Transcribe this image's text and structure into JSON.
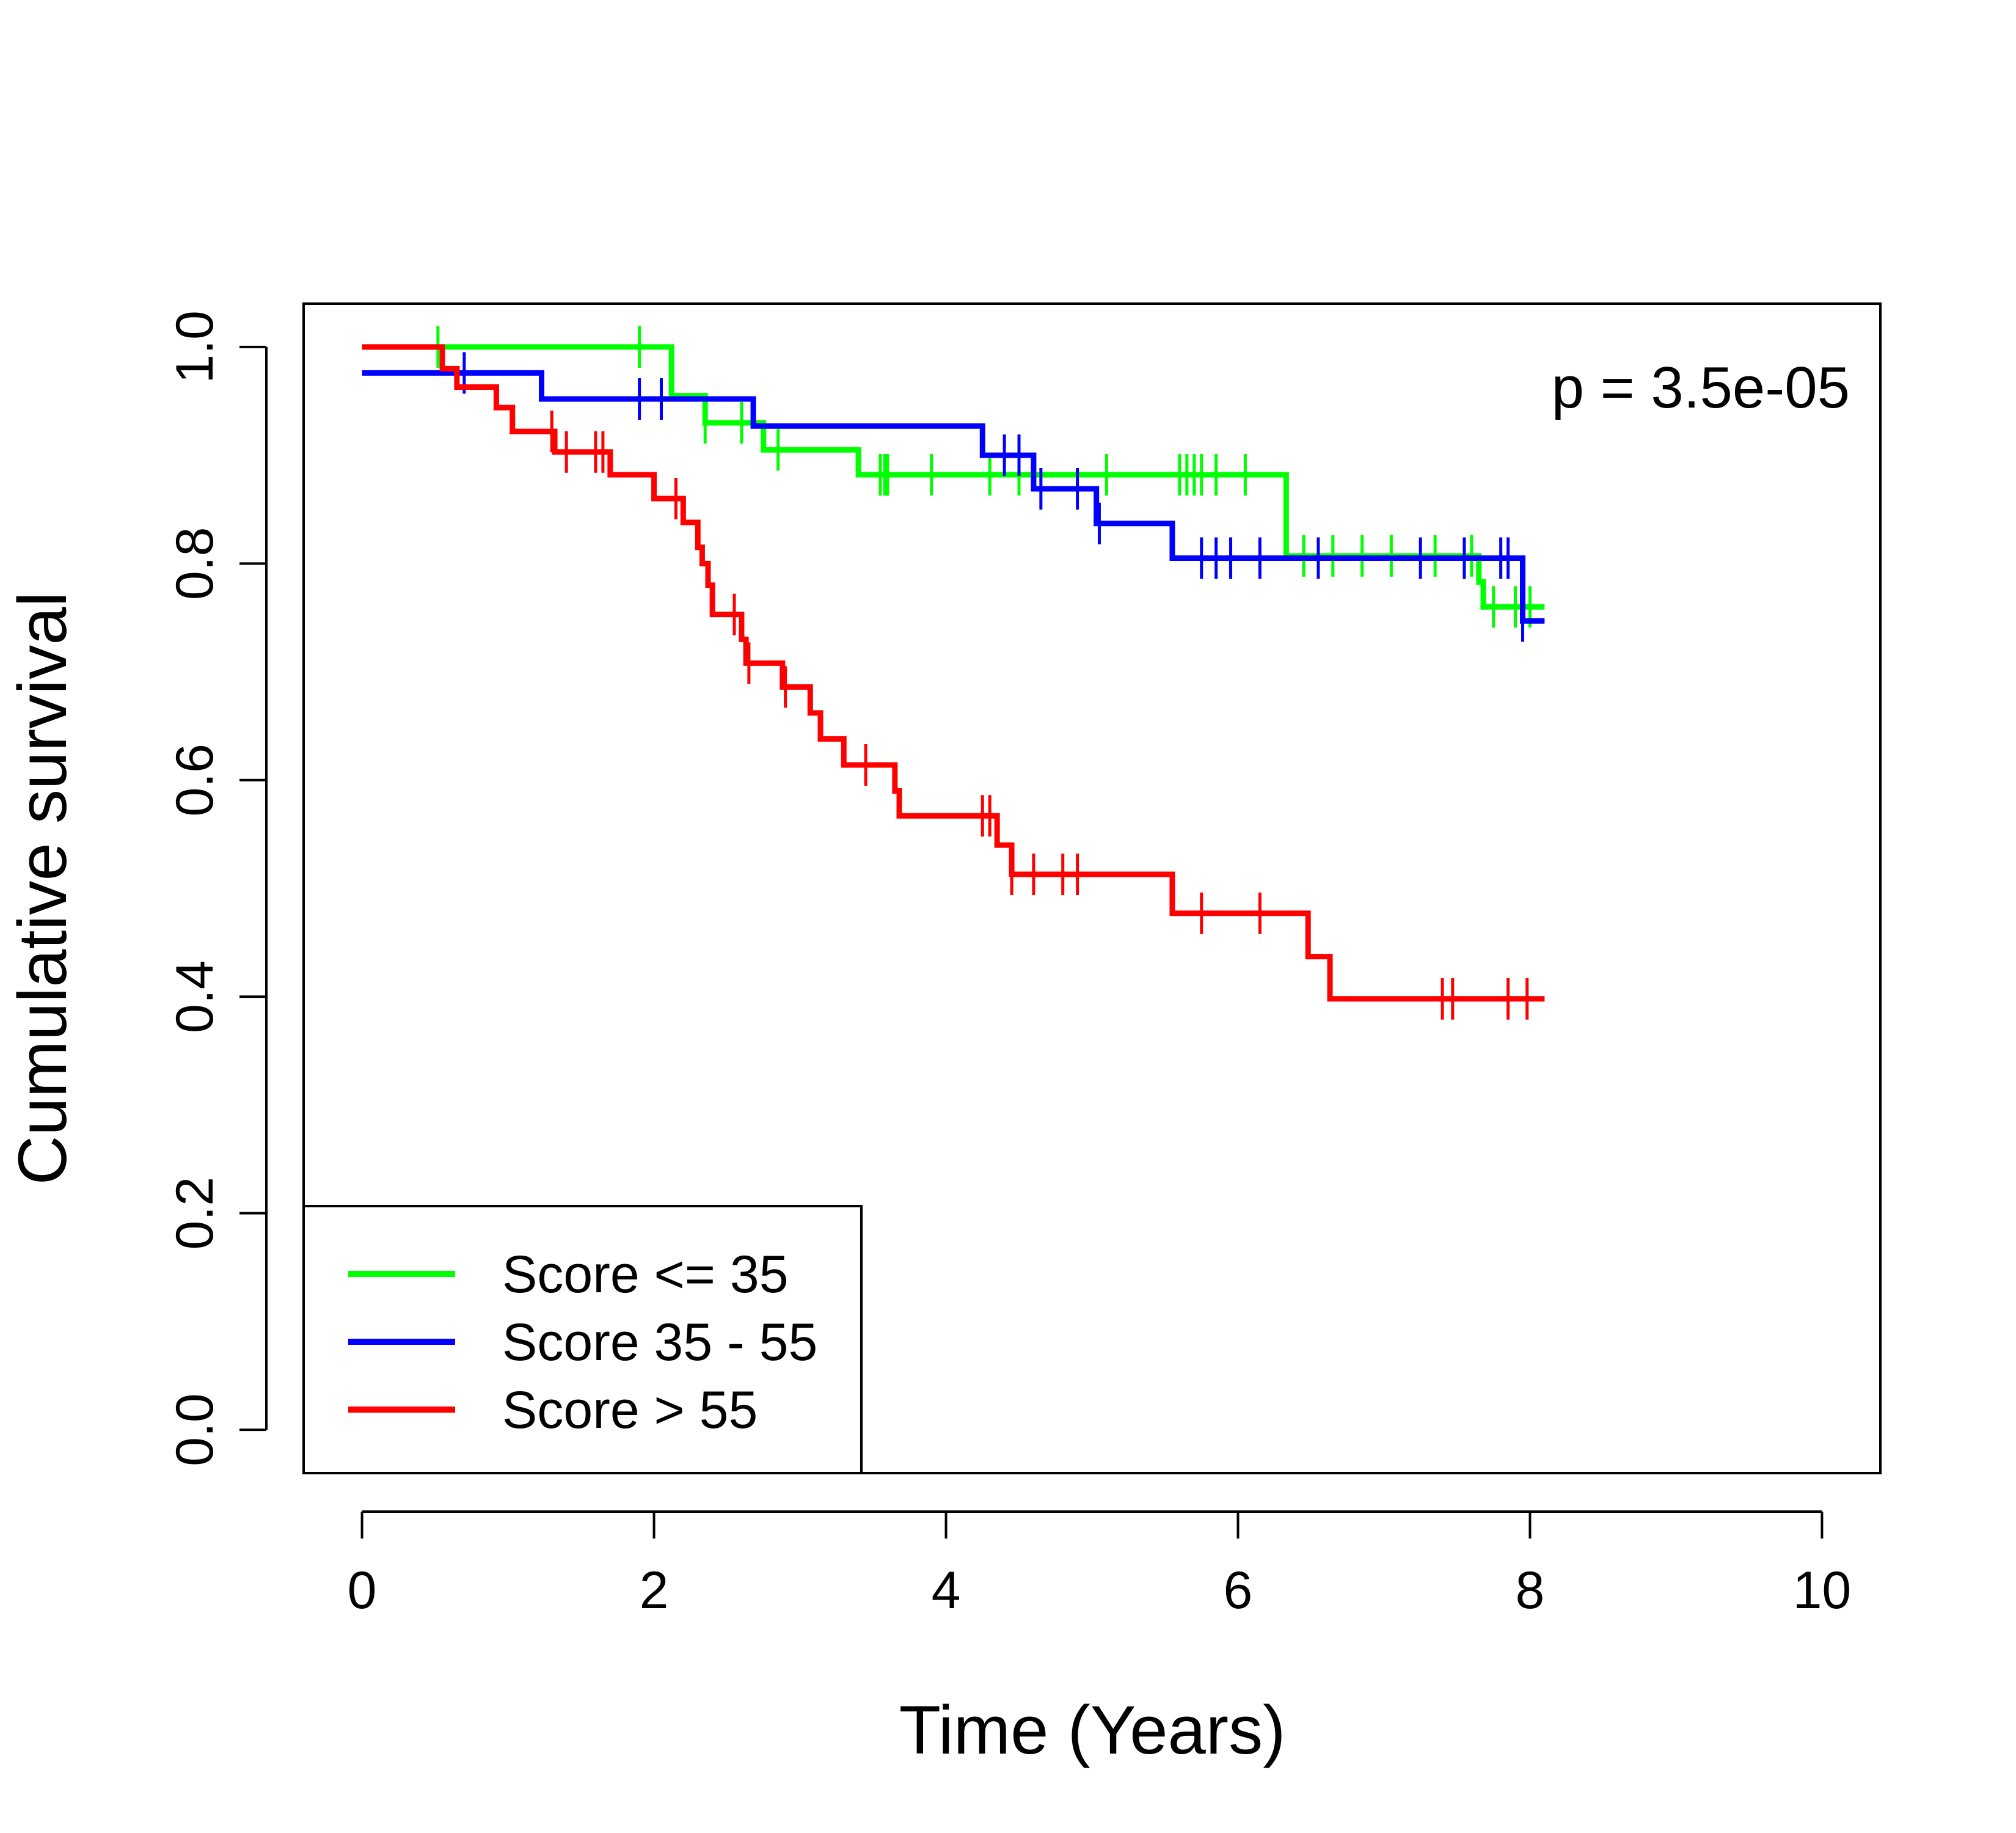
{
  "chart_data": {
    "type": "line",
    "title": "",
    "xlabel": "Time (Years)",
    "ylabel": "Cumulative survival",
    "xlim": [
      -0.4,
      10.4
    ],
    "ylim": [
      -0.04,
      1.04
    ],
    "x_ticks": [
      0,
      2,
      4,
      6,
      8,
      10
    ],
    "y_ticks": [
      0.0,
      0.2,
      0.4,
      0.6,
      0.8,
      1.0
    ],
    "x_tick_labels": [
      "0",
      "2",
      "4",
      "6",
      "8",
      "10"
    ],
    "y_tick_labels": [
      "0.0",
      "0.2",
      "0.4",
      "0.6",
      "0.8",
      "1.0"
    ],
    "annotation": "p = 3.5e-05",
    "legend_position": "bottom-left",
    "grid": false,
    "series": [
      {
        "name": "Score <= 35",
        "color": "#00ff00",
        "steps": [
          [
            0,
            1.0
          ],
          [
            2.12,
            0.955
          ],
          [
            2.35,
            0.93
          ],
          [
            2.75,
            0.905
          ],
          [
            3.4,
            0.882
          ],
          [
            6.33,
            0.807
          ],
          [
            7.65,
            0.783
          ],
          [
            7.68,
            0.76
          ],
          [
            8.1,
            0.76
          ]
        ],
        "censor_x": [
          0.52,
          1.9,
          2.35,
          2.6,
          2.85,
          3.55,
          3.58,
          3.6,
          3.9,
          4.3,
          4.5,
          5.1,
          5.6,
          5.65,
          5.7,
          5.75,
          5.85,
          6.05,
          6.45,
          6.65,
          6.85,
          7.05,
          7.35,
          7.6,
          7.75,
          7.9,
          8.0
        ]
      },
      {
        "name": "Score 35 - 55",
        "color": "#0000ff",
        "steps": [
          [
            0,
            0.976
          ],
          [
            1.23,
            0.952
          ],
          [
            2.68,
            0.927
          ],
          [
            4.25,
            0.9
          ],
          [
            4.6,
            0.869
          ],
          [
            5.03,
            0.837
          ],
          [
            5.55,
            0.805
          ],
          [
            7.95,
            0.747
          ],
          [
            8.1,
            0.747
          ]
        ],
        "censor_x": [
          0.7,
          1.9,
          2.05,
          4.4,
          4.5,
          4.65,
          4.9,
          5.05,
          5.75,
          5.85,
          5.95,
          6.15,
          6.55,
          7.25,
          7.55,
          7.8,
          7.85,
          7.95
        ]
      },
      {
        "name": "Score > 55",
        "color": "#ff0000",
        "steps": [
          [
            0,
            1.0
          ],
          [
            0.55,
            0.98
          ],
          [
            0.65,
            0.963
          ],
          [
            0.92,
            0.944
          ],
          [
            1.03,
            0.922
          ],
          [
            1.32,
            0.903
          ],
          [
            1.7,
            0.882
          ],
          [
            2.0,
            0.86
          ],
          [
            2.2,
            0.838
          ],
          [
            2.3,
            0.815
          ],
          [
            2.33,
            0.8
          ],
          [
            2.37,
            0.78
          ],
          [
            2.4,
            0.753
          ],
          [
            2.6,
            0.73
          ],
          [
            2.63,
            0.708
          ],
          [
            2.88,
            0.686
          ],
          [
            3.07,
            0.662
          ],
          [
            3.14,
            0.638
          ],
          [
            3.3,
            0.614
          ],
          [
            3.65,
            0.59
          ],
          [
            3.68,
            0.567
          ],
          [
            4.35,
            0.54
          ],
          [
            4.45,
            0.513
          ],
          [
            5.55,
            0.477
          ],
          [
            6.48,
            0.437
          ],
          [
            6.63,
            0.398
          ],
          [
            8.1,
            0.398
          ]
        ],
        "censor_x": [
          1.3,
          1.4,
          1.6,
          1.65,
          2.15,
          2.55,
          2.65,
          2.9,
          3.45,
          4.25,
          4.3,
          4.45,
          4.6,
          4.8,
          4.9,
          5.75,
          6.15,
          7.4,
          7.47,
          7.85,
          7.98
        ]
      }
    ]
  }
}
